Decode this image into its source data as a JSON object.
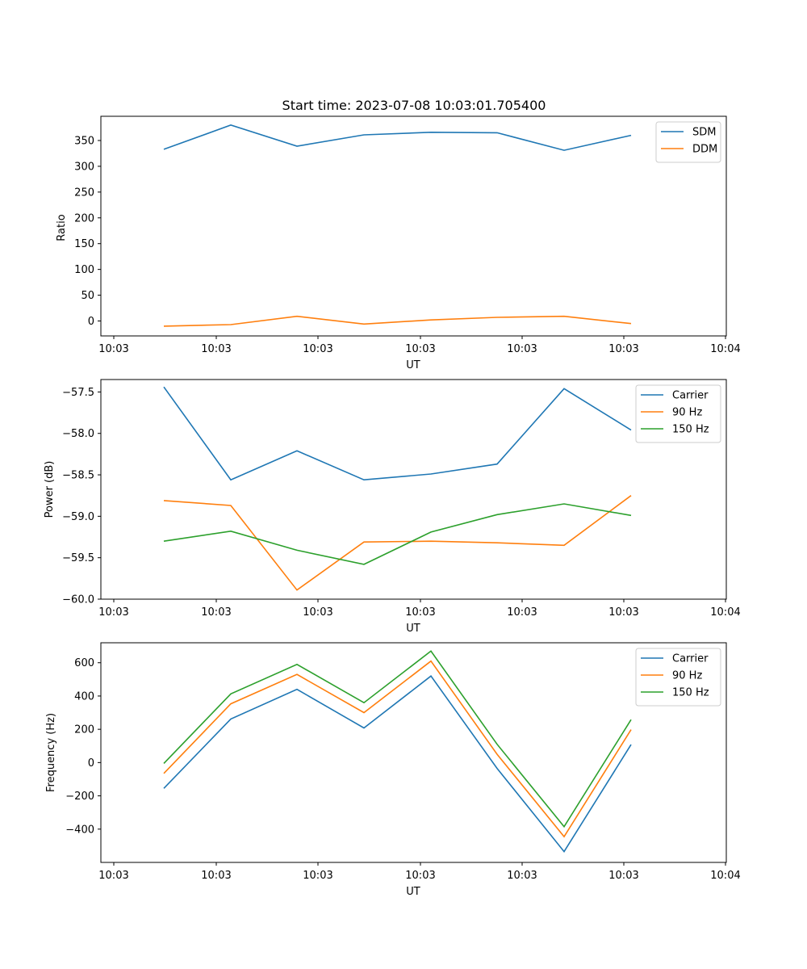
{
  "title": "Start time: 2023-07-08 10:03:01.705400",
  "colors": {
    "C0": "#1f77b4",
    "C1": "#ff7f0e",
    "C2": "#2ca02c"
  },
  "chart_data": [
    {
      "type": "line",
      "title": "Start time: 2023-07-08 10:03:01.705400",
      "xlabel": "UT",
      "ylabel": "Ratio",
      "x_tick_labels": [
        "10:03",
        "10:03",
        "10:03",
        "10:03",
        "10:03",
        "10:03",
        "10:04"
      ],
      "y_ticks": [
        0,
        50,
        100,
        150,
        200,
        250,
        300,
        350
      ],
      "y_tick_labels": [
        "0",
        "50",
        "100",
        "150",
        "200",
        "250",
        "300",
        "350"
      ],
      "ylim": [
        -29,
        397
      ],
      "legend": "top-right",
      "series": [
        {
          "name": "SDM",
          "color": "#1f77b4",
          "values": [
            333,
            380,
            339,
            361,
            366,
            365,
            331,
            360
          ]
        },
        {
          "name": "DDM",
          "color": "#ff7f0e",
          "values": [
            -10,
            -7,
            9,
            -6,
            2,
            7,
            9,
            -5
          ]
        }
      ]
    },
    {
      "type": "line",
      "title": "",
      "xlabel": "UT",
      "ylabel": "Power (dB)",
      "x_tick_labels": [
        "10:03",
        "10:03",
        "10:03",
        "10:03",
        "10:03",
        "10:03",
        "10:04"
      ],
      "y_ticks": [
        -60.0,
        -59.5,
        -59.0,
        -58.5,
        -58.0,
        -57.5
      ],
      "y_tick_labels": [
        "−60.0",
        "−59.5",
        "−59.0",
        "−58.5",
        "−58.0",
        "−57.5"
      ],
      "ylim": [
        -60.0,
        -57.35
      ],
      "legend": "top-right",
      "series": [
        {
          "name": "Carrier",
          "color": "#1f77b4",
          "values": [
            -57.44,
            -58.56,
            -58.21,
            -58.56,
            -58.49,
            -58.37,
            -57.46,
            -57.96
          ]
        },
        {
          "name": "90 Hz",
          "color": "#ff7f0e",
          "values": [
            -58.81,
            -58.87,
            -59.89,
            -59.31,
            -59.3,
            -59.32,
            -59.35,
            -58.75
          ]
        },
        {
          "name": "150 Hz",
          "color": "#2ca02c",
          "values": [
            -59.3,
            -59.18,
            -59.41,
            -59.58,
            -59.19,
            -58.98,
            -58.85,
            -58.99
          ]
        }
      ]
    },
    {
      "type": "line",
      "title": "",
      "xlabel": "UT",
      "ylabel": "Frequency (Hz)",
      "x_tick_labels": [
        "10:03",
        "10:03",
        "10:03",
        "10:03",
        "10:03",
        "10:03",
        "10:04"
      ],
      "y_ticks": [
        -400,
        -200,
        0,
        200,
        400,
        600
      ],
      "y_tick_labels": [
        "−400",
        "−200",
        "0",
        "200",
        "400",
        "600"
      ],
      "ylim": [
        -600,
        720
      ],
      "legend": "top-right",
      "series": [
        {
          "name": "Carrier",
          "color": "#1f77b4",
          "values": [
            -155,
            262,
            440,
            208,
            520,
            -35,
            -535,
            108
          ]
        },
        {
          "name": "90 Hz",
          "color": "#ff7f0e",
          "values": [
            -65,
            353,
            530,
            300,
            610,
            50,
            -445,
            198
          ]
        },
        {
          "name": "150 Hz",
          "color": "#2ca02c",
          "values": [
            -5,
            413,
            590,
            360,
            670,
            110,
            -385,
            258
          ]
        }
      ]
    }
  ]
}
